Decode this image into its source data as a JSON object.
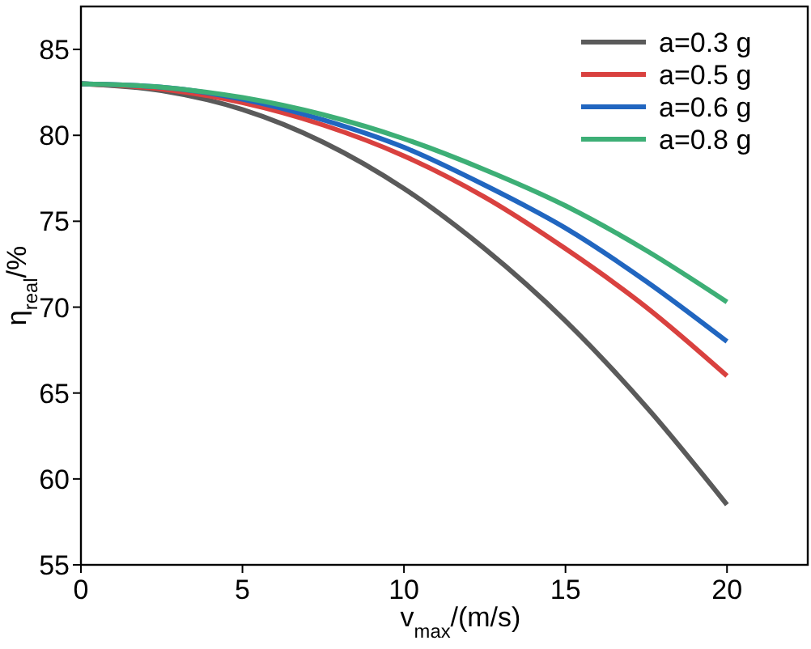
{
  "chart_data": {
    "type": "line",
    "xlabel": "v$_{max}$/(m/s)",
    "ylabel": "η$_{real}$/%",
    "x": [
      0,
      2.5,
      5,
      7.5,
      10,
      12.5,
      15,
      17.5,
      20
    ],
    "series": [
      {
        "name": "a=0.3 g",
        "color": "#5a5a5a",
        "values": [
          83,
          82.6,
          81.5,
          79.6,
          76.9,
          73.4,
          69.2,
          64.2,
          58.5
        ]
      },
      {
        "name": "a=0.5 g",
        "color": "#d9413f",
        "values": [
          83,
          82.7,
          81.9,
          80.6,
          78.8,
          76.4,
          73.4,
          70.0,
          66.0
        ]
      },
      {
        "name": "a=0.6 g",
        "color": "#2166c0",
        "values": [
          83,
          82.8,
          82.1,
          80.9,
          79.3,
          77.1,
          74.6,
          71.5,
          68.0
        ]
      },
      {
        "name": "a=0.8 g",
        "color": "#3daf76",
        "values": [
          83,
          82.8,
          82.2,
          81.2,
          79.8,
          78.0,
          75.9,
          73.3,
          70.3
        ]
      }
    ],
    "xlim": [
      0,
      22.5
    ],
    "xticks": [
      0,
      5,
      10,
      15,
      20
    ],
    "ylim": [
      55,
      87.5
    ],
    "yticks": [
      55,
      60,
      65,
      70,
      75,
      80,
      85
    ],
    "legend": "top right",
    "grid": false,
    "marker": "none",
    "line_style": "solid"
  }
}
